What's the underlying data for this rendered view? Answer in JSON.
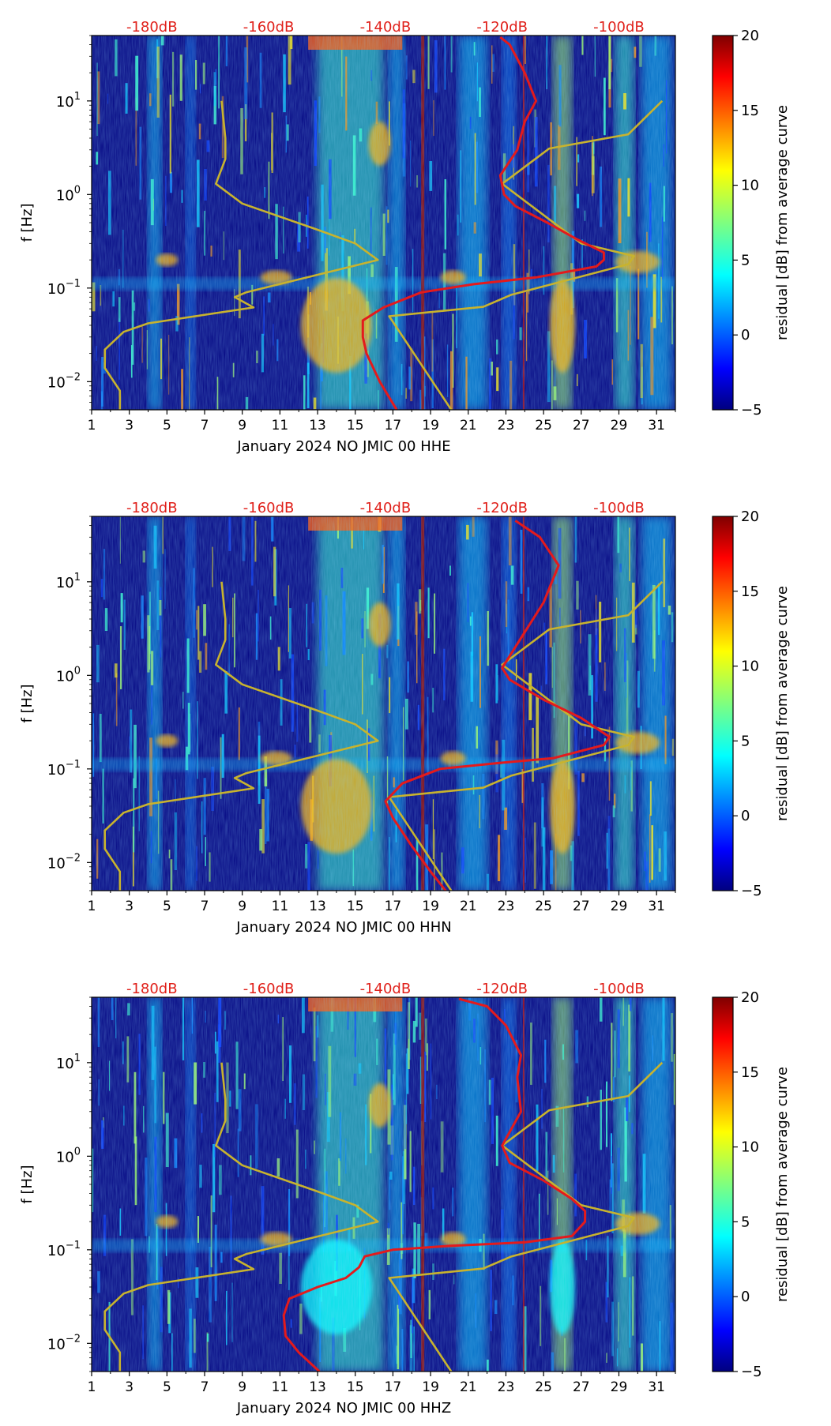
{
  "colors": {
    "top_axis_labels": "#e0201a",
    "red_curve": "#e41a1c",
    "model_curve": "#c8b32e",
    "colormap": [
      "#00007f",
      "#0000ff",
      "#007fff",
      "#00ffff",
      "#7fff7f",
      "#ffff00",
      "#ff7f00",
      "#ff0000",
      "#7f0000"
    ]
  },
  "chart_data": [
    {
      "type": "heatmap",
      "xlabel": "January 2024 NO JMIC 00 HHE",
      "ylabel": "f [Hz]",
      "xlim": [
        1,
        32
      ],
      "ylim": [
        0.005,
        50
      ],
      "yscale": "log",
      "x_ticks": [
        "1",
        "3",
        "5",
        "7",
        "9",
        "11",
        "13",
        "15",
        "17",
        "19",
        "21",
        "23",
        "25",
        "27",
        "29",
        "31"
      ],
      "y_ticks": [
        {
          "value": 0.01,
          "base": "10",
          "exp": "−2"
        },
        {
          "value": 0.1,
          "base": "10",
          "exp": "−1"
        },
        {
          "value": 1,
          "base": "10",
          "exp": "0"
        },
        {
          "value": 10,
          "base": "10",
          "exp": "1"
        }
      ],
      "top_axis": {
        "ticks": [
          "-180dB",
          "-160dB",
          "-140dB",
          "-120dB",
          "-100dB"
        ],
        "positions_day": [
          4.2,
          10.4,
          16.6,
          22.8,
          29.0
        ]
      },
      "colorbar": {
        "label": "residual [dB] from average curve",
        "range": [
          -5,
          20
        ],
        "ticks": [
          "20",
          "15",
          "10",
          "5",
          "0",
          "−5"
        ]
      },
      "model_curve": [
        [
          2.5,
          0.005
        ],
        [
          2.5,
          0.008
        ],
        [
          1.7,
          0.014
        ],
        [
          1.7,
          0.022
        ],
        [
          2.7,
          0.034
        ],
        [
          4.0,
          0.042
        ],
        [
          9.6,
          0.062
        ],
        [
          8.6,
          0.08
        ],
        [
          9.2,
          0.09
        ],
        [
          16.2,
          0.2
        ],
        [
          15.0,
          0.3
        ],
        [
          13.0,
          0.42
        ],
        [
          9.0,
          0.8
        ],
        [
          7.6,
          1.3
        ],
        [
          8.1,
          2.4
        ],
        [
          8.1,
          4
        ],
        [
          7.9,
          10
        ]
      ],
      "model_curve_right": [
        [
          20.1,
          0.005
        ],
        [
          16.8,
          0.05
        ],
        [
          21.8,
          0.063
        ],
        [
          23.3,
          0.085
        ],
        [
          29.5,
          0.18
        ],
        [
          29.8,
          0.22
        ],
        [
          27.0,
          0.3
        ],
        [
          22.8,
          1.3
        ],
        [
          25.3,
          3.1
        ],
        [
          29.5,
          4.4
        ],
        [
          31.3,
          10
        ]
      ],
      "red_curve": [
        [
          17.2,
          0.005
        ],
        [
          16.3,
          0.01
        ],
        [
          15.6,
          0.02
        ],
        [
          15.4,
          0.03
        ],
        [
          15.4,
          0.045
        ],
        [
          16.5,
          0.062
        ],
        [
          18.5,
          0.09
        ],
        [
          21.3,
          0.11
        ],
        [
          24.6,
          0.13
        ],
        [
          27.8,
          0.17
        ],
        [
          28.2,
          0.2
        ],
        [
          28.2,
          0.24
        ],
        [
          26.8,
          0.33
        ],
        [
          25.2,
          0.5
        ],
        [
          23.5,
          0.75
        ],
        [
          22.9,
          1.0
        ],
        [
          22.7,
          1.6
        ],
        [
          23.6,
          3.0
        ],
        [
          24.0,
          6.0
        ],
        [
          24.6,
          10
        ],
        [
          24.0,
          20
        ],
        [
          23.2,
          40
        ],
        [
          22.7,
          48
        ]
      ]
    },
    {
      "type": "heatmap",
      "xlabel": "January 2024 NO JMIC 00 HHN",
      "ylabel": "f [Hz]",
      "xlim": [
        1,
        32
      ],
      "ylim": [
        0.005,
        50
      ],
      "yscale": "log",
      "x_ticks": [
        "1",
        "3",
        "5",
        "7",
        "9",
        "11",
        "13",
        "15",
        "17",
        "19",
        "21",
        "23",
        "25",
        "27",
        "29",
        "31"
      ],
      "y_ticks": [
        {
          "value": 0.01,
          "base": "10",
          "exp": "−2"
        },
        {
          "value": 0.1,
          "base": "10",
          "exp": "−1"
        },
        {
          "value": 1,
          "base": "10",
          "exp": "0"
        },
        {
          "value": 10,
          "base": "10",
          "exp": "1"
        }
      ],
      "top_axis": {
        "ticks": [
          "-180dB",
          "-160dB",
          "-140dB",
          "-120dB",
          "-100dB"
        ],
        "positions_day": [
          4.2,
          10.4,
          16.6,
          22.8,
          29.0
        ]
      },
      "colorbar": {
        "label": "residual [dB] from average curve",
        "range": [
          -5,
          20
        ],
        "ticks": [
          "20",
          "15",
          "10",
          "5",
          "0",
          "−5"
        ]
      },
      "model_curve": [
        [
          2.5,
          0.005
        ],
        [
          2.5,
          0.008
        ],
        [
          1.7,
          0.014
        ],
        [
          1.7,
          0.022
        ],
        [
          2.7,
          0.034
        ],
        [
          4.0,
          0.042
        ],
        [
          9.6,
          0.062
        ],
        [
          8.6,
          0.08
        ],
        [
          9.2,
          0.09
        ],
        [
          16.2,
          0.2
        ],
        [
          15.0,
          0.3
        ],
        [
          13.0,
          0.42
        ],
        [
          9.0,
          0.8
        ],
        [
          7.6,
          1.3
        ],
        [
          8.1,
          2.4
        ],
        [
          8.1,
          4
        ],
        [
          7.9,
          10
        ]
      ],
      "model_curve_right": [
        [
          20.1,
          0.005
        ],
        [
          16.8,
          0.05
        ],
        [
          21.8,
          0.063
        ],
        [
          23.3,
          0.085
        ],
        [
          29.5,
          0.18
        ],
        [
          29.8,
          0.22
        ],
        [
          27.0,
          0.3
        ],
        [
          22.8,
          1.3
        ],
        [
          25.3,
          3.1
        ],
        [
          29.5,
          4.4
        ],
        [
          31.3,
          10
        ]
      ],
      "red_curve": [
        [
          19.8,
          0.005
        ],
        [
          19.0,
          0.008
        ],
        [
          18.0,
          0.015
        ],
        [
          17.0,
          0.03
        ],
        [
          16.6,
          0.045
        ],
        [
          17.5,
          0.07
        ],
        [
          19.5,
          0.1
        ],
        [
          22.5,
          0.115
        ],
        [
          25.5,
          0.13
        ],
        [
          28.2,
          0.18
        ],
        [
          28.5,
          0.22
        ],
        [
          27.0,
          0.35
        ],
        [
          25.0,
          0.55
        ],
        [
          23.2,
          0.9
        ],
        [
          22.8,
          1.2
        ],
        [
          23.8,
          2.5
        ],
        [
          25.0,
          6.0
        ],
        [
          25.8,
          15
        ],
        [
          24.8,
          30
        ],
        [
          23.5,
          45
        ]
      ]
    },
    {
      "type": "heatmap",
      "xlabel": "January 2024 NO JMIC 00 HHZ",
      "ylabel": "f [Hz]",
      "xlim": [
        1,
        32
      ],
      "ylim": [
        0.005,
        50
      ],
      "yscale": "log",
      "x_ticks": [
        "1",
        "3",
        "5",
        "7",
        "9",
        "11",
        "13",
        "15",
        "17",
        "19",
        "21",
        "23",
        "25",
        "27",
        "29",
        "31"
      ],
      "y_ticks": [
        {
          "value": 0.01,
          "base": "10",
          "exp": "−2"
        },
        {
          "value": 0.1,
          "base": "10",
          "exp": "−1"
        },
        {
          "value": 1,
          "base": "10",
          "exp": "0"
        },
        {
          "value": 10,
          "base": "10",
          "exp": "1"
        }
      ],
      "top_axis": {
        "ticks": [
          "-180dB",
          "-160dB",
          "-140dB",
          "-120dB",
          "-100dB"
        ],
        "positions_day": [
          4.2,
          10.4,
          16.6,
          22.8,
          29.0
        ]
      },
      "colorbar": {
        "label": "residual [dB] from average curve",
        "range": [
          -5,
          20
        ],
        "ticks": [
          "20",
          "15",
          "10",
          "5",
          "0",
          "−5"
        ]
      },
      "model_curve": [
        [
          2.5,
          0.005
        ],
        [
          2.5,
          0.008
        ],
        [
          1.7,
          0.014
        ],
        [
          1.7,
          0.022
        ],
        [
          2.7,
          0.034
        ],
        [
          4.0,
          0.042
        ],
        [
          9.6,
          0.062
        ],
        [
          8.6,
          0.08
        ],
        [
          9.2,
          0.09
        ],
        [
          16.2,
          0.2
        ],
        [
          15.0,
          0.3
        ],
        [
          13.0,
          0.42
        ],
        [
          9.0,
          0.8
        ],
        [
          7.6,
          1.3
        ],
        [
          8.1,
          2.4
        ],
        [
          8.1,
          4
        ],
        [
          7.9,
          10
        ]
      ],
      "model_curve_right": [
        [
          20.1,
          0.005
        ],
        [
          16.8,
          0.05
        ],
        [
          21.8,
          0.063
        ],
        [
          23.3,
          0.085
        ],
        [
          29.5,
          0.18
        ],
        [
          29.8,
          0.22
        ],
        [
          27.0,
          0.3
        ],
        [
          22.8,
          1.3
        ],
        [
          25.3,
          3.1
        ],
        [
          29.5,
          4.4
        ],
        [
          31.3,
          10
        ]
      ],
      "red_curve": [
        [
          13.1,
          0.005
        ],
        [
          12.0,
          0.008
        ],
        [
          11.3,
          0.012
        ],
        [
          11.2,
          0.02
        ],
        [
          11.5,
          0.03
        ],
        [
          13.0,
          0.04
        ],
        [
          14.5,
          0.05
        ],
        [
          15.2,
          0.065
        ],
        [
          15.5,
          0.085
        ],
        [
          17.0,
          0.1
        ],
        [
          20.0,
          0.11
        ],
        [
          24.0,
          0.12
        ],
        [
          26.5,
          0.14
        ],
        [
          27.2,
          0.2
        ],
        [
          27.2,
          0.26
        ],
        [
          26.5,
          0.35
        ],
        [
          25.0,
          0.55
        ],
        [
          23.2,
          0.85
        ],
        [
          22.8,
          1.3
        ],
        [
          23.8,
          3.0
        ],
        [
          23.6,
          7.0
        ],
        [
          23.8,
          12.0
        ],
        [
          23.0,
          25.0
        ],
        [
          22.0,
          40.0
        ],
        [
          20.5,
          48.0
        ]
      ]
    }
  ]
}
